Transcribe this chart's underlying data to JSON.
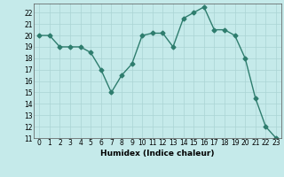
{
  "x": [
    0,
    1,
    2,
    3,
    4,
    5,
    6,
    7,
    8,
    9,
    10,
    11,
    12,
    13,
    14,
    15,
    16,
    17,
    18,
    19,
    20,
    21,
    22,
    23
  ],
  "y": [
    20.0,
    20.0,
    19.0,
    19.0,
    19.0,
    18.5,
    17.0,
    15.0,
    16.5,
    17.5,
    20.0,
    20.2,
    20.2,
    19.0,
    21.5,
    22.0,
    22.5,
    20.5,
    20.5,
    20.0,
    18.0,
    14.5,
    12.0,
    11.0
  ],
  "xlabel": "Humidex (Indice chaleur)",
  "ylim": [
    11,
    22.8
  ],
  "xlim": [
    -0.5,
    23.5
  ],
  "yticks": [
    11,
    12,
    13,
    14,
    15,
    16,
    17,
    18,
    19,
    20,
    21,
    22
  ],
  "xticks": [
    0,
    1,
    2,
    3,
    4,
    5,
    6,
    7,
    8,
    9,
    10,
    11,
    12,
    13,
    14,
    15,
    16,
    17,
    18,
    19,
    20,
    21,
    22,
    23
  ],
  "line_color": "#2e7d6e",
  "marker": "D",
  "marker_size": 2.5,
  "bg_color": "#c5eaea",
  "grid_color": "#aad4d4",
  "axes_bg": "#c5eaea",
  "tick_fontsize": 5.5,
  "xlabel_fontsize": 6.5
}
